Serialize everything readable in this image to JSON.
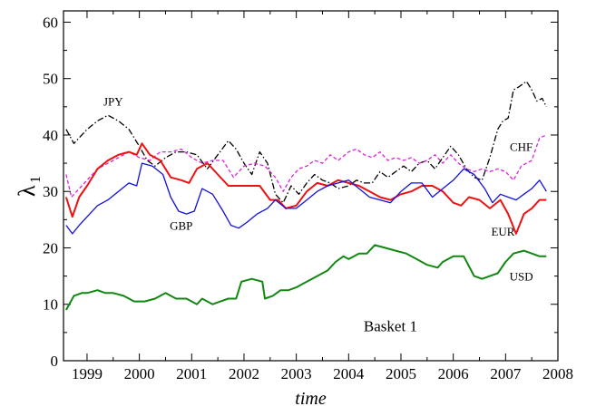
{
  "chart_data": {
    "type": "line",
    "title": "",
    "xlabel": "time",
    "ylabel_main": "λ",
    "ylabel_sub": "1",
    "annotation": "Basket 1",
    "xlim": [
      1998.55,
      2008.0
    ],
    "ylim": [
      0,
      62
    ],
    "x_ticks": [
      1999,
      2000,
      2001,
      2002,
      2003,
      2004,
      2005,
      2006,
      2007,
      2008
    ],
    "y_ticks": [
      0,
      10,
      20,
      30,
      40,
      50,
      60
    ],
    "grid": false,
    "legend": "none",
    "series": [
      {
        "name": "JPY",
        "color": "#000000",
        "dash": "dashdot",
        "x": [
          1998.6,
          1998.75,
          1999.0,
          1999.2,
          1999.4,
          1999.6,
          1999.8,
          2000.0,
          2000.15,
          2000.3,
          2000.5,
          2000.7,
          2000.9,
          2001.1,
          2001.3,
          2001.5,
          2001.7,
          2001.85,
          2002.0,
          2002.15,
          2002.3,
          2002.45,
          2002.6,
          2002.75,
          2002.9,
          2003.05,
          2003.2,
          2003.35,
          2003.5,
          2003.65,
          2003.8,
          2004.0,
          2004.15,
          2004.3,
          2004.45,
          2004.6,
          2004.75,
          2004.9,
          2005.05,
          2005.2,
          2005.35,
          2005.5,
          2005.65,
          2005.8,
          2005.95,
          2006.1,
          2006.25,
          2006.4,
          2006.55,
          2006.7,
          2006.85,
          2006.95,
          2007.05,
          2007.15,
          2007.25,
          2007.4,
          2007.5,
          2007.6,
          2007.7,
          2007.78
        ],
        "values": [
          41,
          38.5,
          41,
          42.5,
          43.5,
          42.5,
          41,
          38,
          35.5,
          34.5,
          36,
          37,
          37,
          36.5,
          34,
          36.5,
          39,
          37.5,
          35,
          33,
          37,
          35,
          29.5,
          28,
          31,
          29.5,
          31.5,
          33,
          32,
          31.5,
          30.5,
          31,
          32,
          31.5,
          31.5,
          33.5,
          32.5,
          33.5,
          34.5,
          33.5,
          35,
          35.5,
          34,
          36,
          38,
          36.5,
          34,
          32.5,
          32,
          36,
          41,
          42.5,
          43,
          48,
          48.5,
          49.5,
          48,
          46,
          46.5,
          45
        ]
      },
      {
        "name": "CHF",
        "color": "#dd22dd",
        "dash": "dashed",
        "x": [
          1998.6,
          1998.7,
          1998.85,
          1999.0,
          1999.2,
          1999.4,
          1999.6,
          1999.8,
          2000.0,
          2000.2,
          2000.4,
          2000.6,
          2000.8,
          2001.0,
          2001.2,
          2001.4,
          2001.6,
          2001.8,
          2002.0,
          2002.2,
          2002.4,
          2002.6,
          2002.75,
          2002.9,
          2003.05,
          2003.2,
          2003.35,
          2003.5,
          2003.65,
          2003.8,
          2004.0,
          2004.15,
          2004.3,
          2004.45,
          2004.6,
          2004.75,
          2004.9,
          2005.05,
          2005.2,
          2005.35,
          2005.5,
          2005.65,
          2005.8,
          2005.95,
          2006.1,
          2006.25,
          2006.4,
          2006.55,
          2006.7,
          2006.85,
          2007.0,
          2007.15,
          2007.3,
          2007.5,
          2007.65,
          2007.78
        ],
        "values": [
          33,
          29,
          30.5,
          32,
          34,
          35,
          36,
          37,
          36,
          35.5,
          37,
          37,
          37.5,
          36,
          35,
          35.5,
          35.5,
          32.5,
          34.5,
          35,
          34.5,
          32.5,
          30,
          32.5,
          34,
          34.5,
          35.5,
          35,
          36.5,
          35.5,
          37,
          37.5,
          36.5,
          36,
          37,
          35.5,
          36,
          35.5,
          36,
          35,
          35.5,
          36.5,
          35,
          36.5,
          35,
          34,
          33.5,
          34,
          33.5,
          34,
          33.5,
          32,
          34.5,
          35.5,
          39.5,
          40
        ]
      },
      {
        "name": "EUR",
        "color": "#ee1111",
        "dash": "solid",
        "x": [
          1998.6,
          1998.72,
          1998.85,
          1999.0,
          1999.2,
          1999.4,
          1999.6,
          1999.8,
          1999.95,
          2000.05,
          2000.2,
          2000.4,
          2000.6,
          2000.8,
          2000.95,
          2001.1,
          2001.3,
          2001.5,
          2001.7,
          2001.9,
          2002.1,
          2002.3,
          2002.5,
          2002.65,
          2002.8,
          2003.0,
          2003.2,
          2003.4,
          2003.6,
          2003.8,
          2004.0,
          2004.2,
          2004.4,
          2004.6,
          2004.8,
          2005.0,
          2005.2,
          2005.4,
          2005.6,
          2005.8,
          2006.0,
          2006.15,
          2006.3,
          2006.5,
          2006.7,
          2006.9,
          2007.05,
          2007.2,
          2007.35,
          2007.5,
          2007.65,
          2007.78
        ],
        "values": [
          29,
          25.5,
          29,
          31,
          34,
          35.5,
          36.5,
          37,
          36.5,
          38.5,
          36.5,
          35.5,
          32.5,
          32,
          31.5,
          34,
          35,
          33,
          31,
          31,
          31,
          31,
          28.5,
          28.5,
          27,
          27.5,
          30,
          31.5,
          31,
          32,
          31.5,
          31,
          30,
          29,
          28.5,
          29.5,
          30,
          31,
          31,
          30,
          28,
          27.5,
          29,
          28.5,
          27,
          28.5,
          26,
          22.5,
          26,
          27,
          28.5,
          28.5
        ]
      },
      {
        "name": "GBP",
        "color": "#1111dd",
        "dash": "solid",
        "x": [
          1998.6,
          1998.72,
          1998.85,
          1999.0,
          1999.2,
          1999.4,
          1999.6,
          1999.8,
          1999.95,
          2000.05,
          2000.25,
          2000.45,
          2000.6,
          2000.75,
          2000.9,
          2001.05,
          2001.2,
          2001.4,
          2001.6,
          2001.75,
          2001.9,
          2002.05,
          2002.25,
          2002.45,
          2002.6,
          2002.8,
          2003.0,
          2003.2,
          2003.4,
          2003.6,
          2003.8,
          2004.0,
          2004.2,
          2004.4,
          2004.6,
          2004.8,
          2005.0,
          2005.2,
          2005.4,
          2005.6,
          2005.8,
          2006.0,
          2006.2,
          2006.4,
          2006.6,
          2006.75,
          2006.9,
          2007.05,
          2007.2,
          2007.35,
          2007.5,
          2007.65,
          2007.78
        ],
        "values": [
          24,
          22.5,
          24,
          25.5,
          27.5,
          28.5,
          30,
          31.5,
          31,
          35,
          34.5,
          33,
          29,
          26.5,
          26,
          26.5,
          30.5,
          29.5,
          26.5,
          24,
          23.5,
          24.5,
          26,
          27,
          28.5,
          27,
          27,
          28.5,
          30,
          31,
          31.5,
          32,
          30.5,
          29,
          28.5,
          28,
          30,
          31.5,
          31.5,
          29,
          30.5,
          32,
          34,
          33,
          30.5,
          28,
          29.5,
          29,
          28.5,
          29.5,
          30.5,
          32,
          30
        ]
      },
      {
        "name": "USD",
        "color": "#118811",
        "dash": "solid",
        "x": [
          1998.6,
          1998.75,
          1998.9,
          1999.0,
          1999.2,
          1999.35,
          1999.5,
          1999.7,
          1999.9,
          2000.1,
          2000.3,
          2000.5,
          2000.7,
          2000.9,
          2001.1,
          2001.2,
          2001.4,
          2001.55,
          2001.7,
          2001.85,
          2001.95,
          2002.15,
          2002.35,
          2002.4,
          2002.55,
          2002.7,
          2002.85,
          2003.0,
          2003.2,
          2003.4,
          2003.6,
          2003.75,
          2003.9,
          2004.0,
          2004.2,
          2004.35,
          2004.5,
          2004.7,
          2004.9,
          2005.1,
          2005.3,
          2005.5,
          2005.7,
          2005.8,
          2006.0,
          2006.2,
          2006.4,
          2006.55,
          2006.7,
          2006.85,
          2007.0,
          2007.15,
          2007.35,
          2007.5,
          2007.65,
          2007.78
        ],
        "values": [
          9,
          11.5,
          12,
          12,
          12.5,
          12,
          12,
          11.5,
          10.5,
          10.5,
          11,
          12,
          11,
          11,
          10,
          11,
          10,
          10.5,
          11,
          11,
          14,
          14.5,
          14,
          11,
          11.5,
          12.5,
          12.5,
          13,
          14,
          15,
          16,
          17.5,
          18.5,
          18,
          19,
          19,
          20.5,
          20,
          19.5,
          19,
          18,
          17,
          16.5,
          17.5,
          18.5,
          18.5,
          15,
          14.5,
          15,
          15.5,
          17.5,
          19,
          19.5,
          19,
          18.5,
          18.5
        ]
      }
    ],
    "series_label_positions_data": [
      {
        "name": "JPY",
        "x": 1999.5,
        "y": 45.2,
        "anchor": "middle"
      },
      {
        "name": "CHF",
        "x": 2007.3,
        "y": 37.2,
        "anchor": "middle"
      },
      {
        "name": "EUR",
        "x": 2006.95,
        "y": 22.2,
        "anchor": "middle"
      },
      {
        "name": "GBP",
        "x": 2000.8,
        "y": 23.2,
        "anchor": "middle"
      },
      {
        "name": "USD",
        "x": 2007.3,
        "y": 14.2,
        "anchor": "middle"
      }
    ],
    "annotation_position_data": {
      "x": 2004.8,
      "y": 5.2
    }
  }
}
